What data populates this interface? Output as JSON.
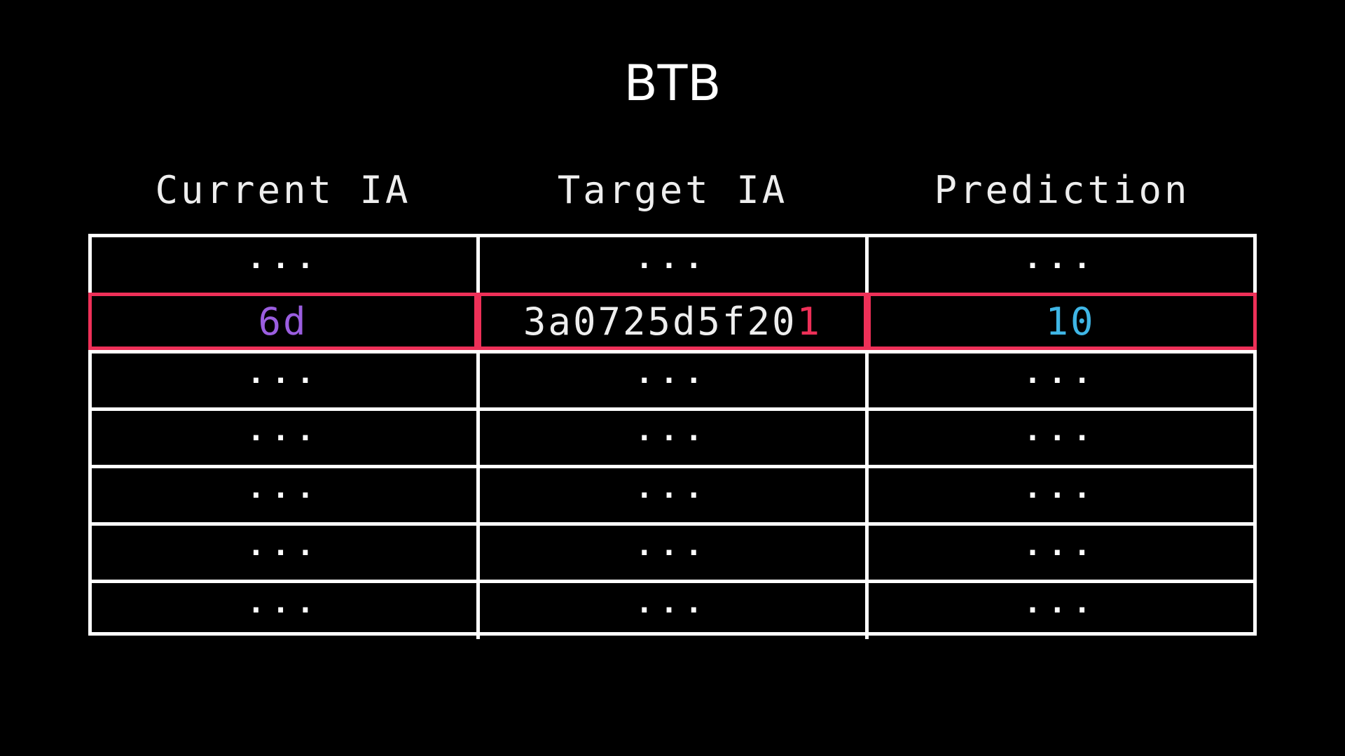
{
  "title": "BTB",
  "columns": [
    "Current IA",
    "Target IA",
    "Prediction"
  ],
  "highlight_row_index": 1,
  "highlight": {
    "current_ia": "6d",
    "target_ia_prefix": "3a0725d5f20",
    "target_ia_last_digit": "1",
    "prediction": "10"
  },
  "placeholder": "...",
  "row_count": 7,
  "colors": {
    "background": "#000000",
    "grid": "#ffffff",
    "highlight_border": "#ee3058",
    "current_ia": "#9b5ee0",
    "target_ia_last_digit": "#ee3058",
    "prediction": "#3fb6e6"
  }
}
